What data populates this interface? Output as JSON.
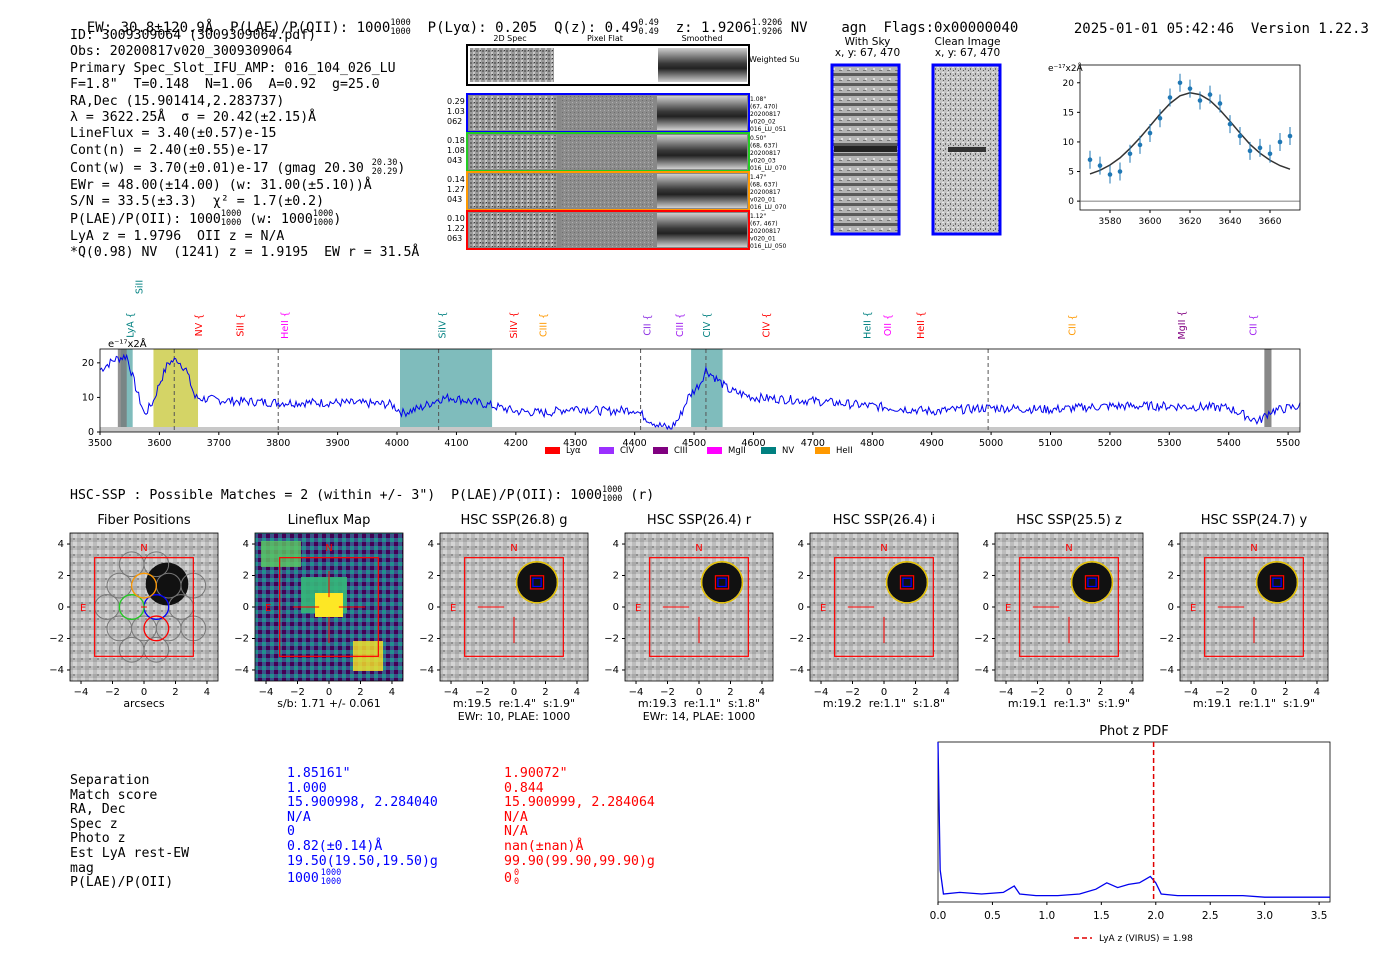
{
  "header": {
    "ew": "EW: 30.8±120.9Å",
    "plae": "P(LAE)/P(OII): 1000",
    "plae_hi": "1000",
    "plae_lo": "1000",
    "plya": "P(Lyα): 0.205",
    "qz": "Q(z): 0.49",
    "qz_hi": "0.49",
    "qz_lo": "0.49",
    "z": "z: 1.9206",
    "z_hi": "1.9206",
    "z_lo": "1.9206",
    "nv": "NV",
    "agn": "agn",
    "flags": "Flags:0x00000040",
    "timestamp": "2025-01-01 05:42:46",
    "version": "Version 1.22.3"
  },
  "info": {
    "id": "ID: 3009309064 (3009309064.pdf)",
    "obs": "Obs: 20200817v020_3009309064",
    "primary": "Primary Spec_Slot_IFU_AMP: 016_104_026_LU",
    "params": "F=1.8\"  T=0.148  N=1.06  A=0.92  g=25.0",
    "radec": "RA,Dec (15.901414,2.283737)",
    "lambda": "λ = 3622.25Å  σ = 20.42(±2.15)Å",
    "lineflux": "LineFlux = 3.40(±0.57)e-15",
    "contn": "Cont(n) = 2.40(±0.55)e-17",
    "contw": "Cont(w) = 3.70(±0.01)e-17 (gmag 20.30",
    "contw_hi": "20.30",
    "contw_lo": "20.29",
    "ewr": "EWr = 48.00(±14.00) (w: 31.00(±5.10))Å",
    "sn": "S/N = 33.5(±3.3)  χ² = 1.7(±0.2)",
    "plae_line": "P(LAE)/P(OII): 1000",
    "plae_line_hi": "1000",
    "plae_line_lo": "1000",
    "plae_w": "(w: 1000",
    "plae_w_hi": "1000",
    "plae_w_lo": "1000",
    "lyaz": "LyA z = 1.9796  OII z = N/A",
    "qnv": "*Q(0.98) NV  (1241) z = 1.9195  EW r = 31.5Å"
  },
  "fiber_cutouts": {
    "col_headers": [
      "2D Spec",
      "Pixel Flat",
      "Smoothed"
    ],
    "weighted_label": "Weighted Sum",
    "rows": [
      {
        "left": [
          "0.29",
          "1.03",
          "062"
        ],
        "right": [
          "1.08\"",
          "(67, 470)",
          "20200817",
          "v020_02",
          "016_LU_051"
        ],
        "color": "#0000ff"
      },
      {
        "left": [
          "0.18",
          "1.08",
          "043"
        ],
        "right": [
          "0.50\"",
          "(68, 637)",
          "20200817",
          "v020_03",
          "016_LU_070"
        ],
        "color": "#22cc22"
      },
      {
        "left": [
          "0.14",
          "1.27",
          "043"
        ],
        "right": [
          "1.47\"",
          "(68, 637)",
          "20200817",
          "v020_01",
          "016_LU_070"
        ],
        "color": "#ff9900"
      },
      {
        "left": [
          "0.10",
          "1.22",
          "063"
        ],
        "right": [
          "1.12\"",
          "(67, 467)",
          "20200817",
          "v020_01",
          "016_LU_050"
        ],
        "color": "#ff0000"
      }
    ]
  },
  "sky_cutouts": {
    "with_sky": "With Sky",
    "with_sky_xy": "x, y: 67, 470",
    "clean": "Clean Image",
    "clean_xy": "x, y: 67, 470"
  },
  "hsc_line": {
    "text": "HSC-SSP : Possible Matches = 2 (within +/- 3\")  P(LAE)/P(OII): 1000",
    "hi": "1000",
    "lo": "1000",
    "suffix": "(r)"
  },
  "cutouts": [
    {
      "title": "Fiber Positions",
      "caption1": "arcsecs",
      "caption2": ""
    },
    {
      "title": "Lineflux Map",
      "caption1": "s/b: 1.71 +/- 0.061",
      "caption2": ""
    },
    {
      "title": "HSC SSP(26.8) g",
      "caption1": "m:19.5  re:1.4\"  s:1.9\"",
      "caption2": "EWr: 10, PLAE: 1000"
    },
    {
      "title": "HSC SSP(26.4) r",
      "caption1": "m:19.3  re:1.1\"  s:1.8\"",
      "caption2": "EWr: 14, PLAE: 1000"
    },
    {
      "title": "HSC SSP(26.4) i",
      "caption1": "m:19.2  re:1.1\"  s:1.8\"",
      "caption2": ""
    },
    {
      "title": "HSC SSP(25.5) z",
      "caption1": "m:19.1  re:1.3\"  s:1.9\"",
      "caption2": ""
    },
    {
      "title": "HSC SSP(24.7) y",
      "caption1": "m:19.1  re:1.1\"  s:1.9\"",
      "caption2": ""
    }
  ],
  "cutout_labels": {
    "north": "N",
    "east": "E"
  },
  "cutout_ticks": [
    "4",
    "2",
    "0",
    "−2",
    "−4"
  ],
  "cutout_xticks": [
    "−4",
    "−2",
    "0",
    "2",
    "4"
  ],
  "match_table": {
    "labels": [
      "Separation",
      "Match score",
      "RA, Dec",
      "Spec z",
      "Photo z",
      "Est LyA rest-EW",
      "mag",
      "P(LAE)/P(OII)"
    ],
    "match1": [
      "1.85161\"",
      "1.000",
      "15.900998, 2.284040",
      "N/A",
      "0",
      "0.82(±0.14)Å",
      "19.50(19.50,19.50)g",
      "1000"
    ],
    "match1_frac": [
      "1000",
      "1000"
    ],
    "match2": [
      "1.90072\"",
      "0.844",
      "15.900999, 2.284064",
      "N/A",
      "N/A",
      "nan(±nan)Å",
      "99.90(99.90,99.90)g",
      "0"
    ],
    "match2_frac": [
      "0",
      "0"
    ]
  },
  "chart_data": [
    {
      "type": "line",
      "title": "",
      "ylabel_unit": "e⁻¹⁷x2Å",
      "x": [
        3570,
        3575,
        3580,
        3585,
        3590,
        3595,
        3600,
        3605,
        3610,
        3615,
        3620,
        3625,
        3630,
        3635,
        3640,
        3645,
        3650,
        3655,
        3660,
        3665,
        3670
      ],
      "series": [
        {
          "name": "data",
          "values": [
            7.0,
            6.0,
            4.5,
            5.0,
            8.0,
            9.5,
            11.5,
            14.0,
            17.5,
            20.0,
            19.0,
            17.0,
            18.0,
            16.5,
            13.0,
            11.0,
            8.5,
            9.0,
            8.0,
            10.0,
            11.0
          ]
        },
        {
          "name": "fit",
          "values": [
            4.6,
            5.2,
            6.1,
            7.3,
            8.9,
            10.7,
            12.7,
            14.7,
            16.5,
            17.8,
            18.3,
            18.0,
            17.0,
            15.4,
            13.5,
            11.5,
            9.6,
            8.1,
            6.9,
            6.0,
            5.4
          ]
        }
      ],
      "xlim": [
        3565,
        3675
      ],
      "ylim": [
        -1.5,
        23
      ],
      "xticks": [
        "3580",
        "3600",
        "3620",
        "3640",
        "3660"
      ],
      "yticks": [
        "0",
        "5",
        "10",
        "15",
        "20"
      ]
    },
    {
      "type": "line",
      "title": "",
      "ylabel_unit": "e⁻¹⁷x2Å",
      "xlim": [
        3500,
        5520
      ],
      "ylim": [
        0,
        24
      ],
      "xticks": [
        "3500",
        "3600",
        "3700",
        "3800",
        "3900",
        "4000",
        "4100",
        "4200",
        "4300",
        "4400",
        "4500",
        "4600",
        "4700",
        "4800",
        "4900",
        "5000",
        "5100",
        "5200",
        "5300",
        "5400",
        "5500"
      ],
      "yticks": [
        "0",
        "10",
        "20"
      ],
      "spectrum_anchor_x": [
        3500,
        3525,
        3545,
        3560,
        3575,
        3590,
        3600,
        3615,
        3630,
        3645,
        3660,
        3680,
        3720,
        3800,
        3900,
        3990,
        4010,
        4040,
        4070,
        4090,
        4120,
        4150,
        4200,
        4250,
        4300,
        4350,
        4400,
        4420,
        4440,
        4460,
        4475,
        4490,
        4510,
        4520,
        4540,
        4560,
        4600,
        4700,
        4800,
        4900,
        5000,
        5100,
        5200,
        5300,
        5400,
        5450,
        5470,
        5520
      ],
      "spectrum_anchor_y": [
        18,
        21,
        22,
        13,
        5,
        9,
        14,
        20,
        21,
        18,
        10,
        9.5,
        9,
        8.5,
        8.5,
        8,
        5.5,
        7,
        9.5,
        10,
        9,
        8,
        6,
        5.5,
        7,
        6,
        6.5,
        4,
        2,
        1,
        4,
        10,
        14,
        18,
        15,
        12,
        10,
        9,
        7.5,
        6,
        7,
        6.5,
        7.5,
        7.5,
        7,
        3,
        6,
        7.5
      ],
      "shaded_bands": [
        {
          "from": 3535,
          "to": 3555,
          "color": "#2a8f8f"
        },
        {
          "from": 3590,
          "to": 3665,
          "color": "#b8b800"
        },
        {
          "from": 4005,
          "to": 4160,
          "color": "#2a8f8f"
        },
        {
          "from": 4495,
          "to": 4548,
          "color": "#2a8f8f"
        }
      ],
      "dashed_lines": [
        3625,
        3800,
        4070,
        4410,
        4520,
        4995
      ],
      "line_labels": [
        {
          "label": "SiII",
          "x": 3565,
          "color": "#008080",
          "top": true
        },
        {
          "label": "LyA",
          "x": 3550,
          "color": "#008080",
          "top": false
        },
        {
          "label": "NV",
          "x": 3665,
          "color": "#ff0000",
          "top": false
        },
        {
          "label": "SiII",
          "x": 3735,
          "color": "#ff0000",
          "top": false
        },
        {
          "label": "HeII",
          "x": 3810,
          "color": "#ff00ff",
          "top": false
        },
        {
          "label": "SiIV",
          "x": 4075,
          "color": "#008080",
          "top": false
        },
        {
          "label": "SiIV",
          "x": 4195,
          "color": "#ff0000",
          "top": false
        },
        {
          "label": "CIII",
          "x": 4245,
          "color": "#ff9900",
          "top": false
        },
        {
          "label": "CII",
          "x": 4420,
          "color": "#8a2be2",
          "top": false
        },
        {
          "label": "CIII",
          "x": 4475,
          "color": "#a020f0",
          "top": false
        },
        {
          "label": "CIV",
          "x": 4520,
          "color": "#008080",
          "top": false
        },
        {
          "label": "CIV",
          "x": 4620,
          "color": "#ff0000",
          "top": false
        },
        {
          "label": "HeII",
          "x": 4790,
          "color": "#008080",
          "top": false
        },
        {
          "label": "OII",
          "x": 4825,
          "color": "#ff00ff",
          "top": false
        },
        {
          "label": "HeII",
          "x": 4880,
          "color": "#ff0000",
          "top": false
        },
        {
          "label": "CII",
          "x": 5135,
          "color": "#ff9900",
          "top": false
        },
        {
          "label": "MgII",
          "x": 5320,
          "color": "#800080",
          "top": false
        },
        {
          "label": "CII",
          "x": 5440,
          "color": "#a020f0",
          "top": false
        }
      ],
      "legend": [
        {
          "label": "Lyα",
          "color": "#ff0000"
        },
        {
          "label": "CIV",
          "color": "#9b30ff"
        },
        {
          "label": "CIII",
          "color": "#800080"
        },
        {
          "label": "MgII",
          "color": "#ff00ff"
        },
        {
          "label": "NV",
          "color": "#008080"
        },
        {
          "label": "HeII",
          "color": "#ff9900"
        }
      ]
    },
    {
      "type": "line",
      "title": "Phot z PDF",
      "x": [
        0.0,
        0.02,
        0.05,
        0.2,
        0.4,
        0.6,
        0.7,
        0.75,
        0.9,
        1.1,
        1.3,
        1.45,
        1.55,
        1.65,
        1.75,
        1.85,
        1.95,
        2.0,
        2.05,
        2.2,
        2.5,
        2.8,
        3.0,
        3.3,
        3.6
      ],
      "series": [
        {
          "name": "pdf",
          "values": [
            1.0,
            0.2,
            0.05,
            0.06,
            0.05,
            0.06,
            0.1,
            0.05,
            0.04,
            0.04,
            0.05,
            0.08,
            0.12,
            0.09,
            0.11,
            0.12,
            0.16,
            0.12,
            0.05,
            0.04,
            0.04,
            0.04,
            0.03,
            0.03,
            0.03
          ]
        }
      ],
      "xlim": [
        0,
        3.6
      ],
      "ylim": [
        0,
        1.0
      ],
      "xticks": [
        "0.0",
        "0.5",
        "1.0",
        "1.5",
        "2.0",
        "2.5",
        "3.0",
        "3.5"
      ],
      "vline": 1.98,
      "legend_label": "LyA z (VIRUS) = 1.98"
    }
  ]
}
